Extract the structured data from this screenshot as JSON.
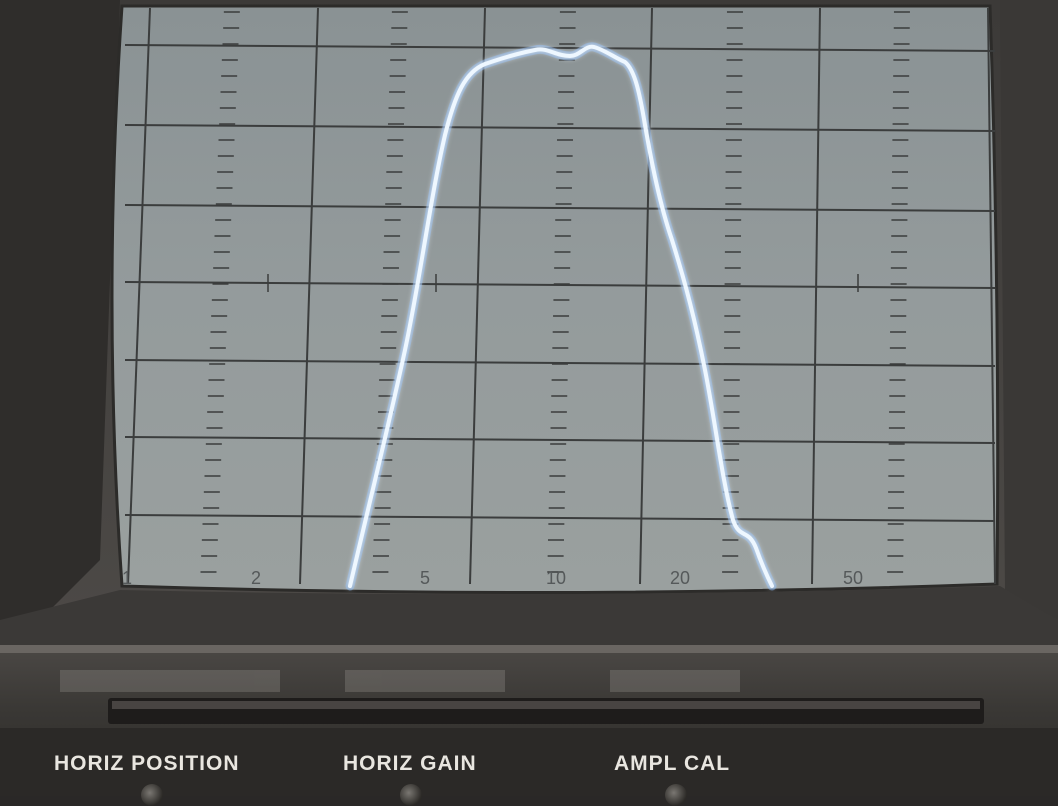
{
  "scale": {
    "labels": [
      "1",
      "2",
      "5",
      "10",
      "20",
      "50"
    ]
  },
  "panel": {
    "labels": [
      "HORIZ POSITION",
      "HORIZ GAIN",
      "AMPL CAL"
    ]
  },
  "colors": {
    "screen": "#8f9698",
    "grid": "#3b3d3d",
    "trace": "#e8f4ff",
    "trace_glow": "#7fb6ff",
    "bezel": "#4a4846",
    "panel": "#33312f",
    "label_text": "#e9e6e0"
  }
}
